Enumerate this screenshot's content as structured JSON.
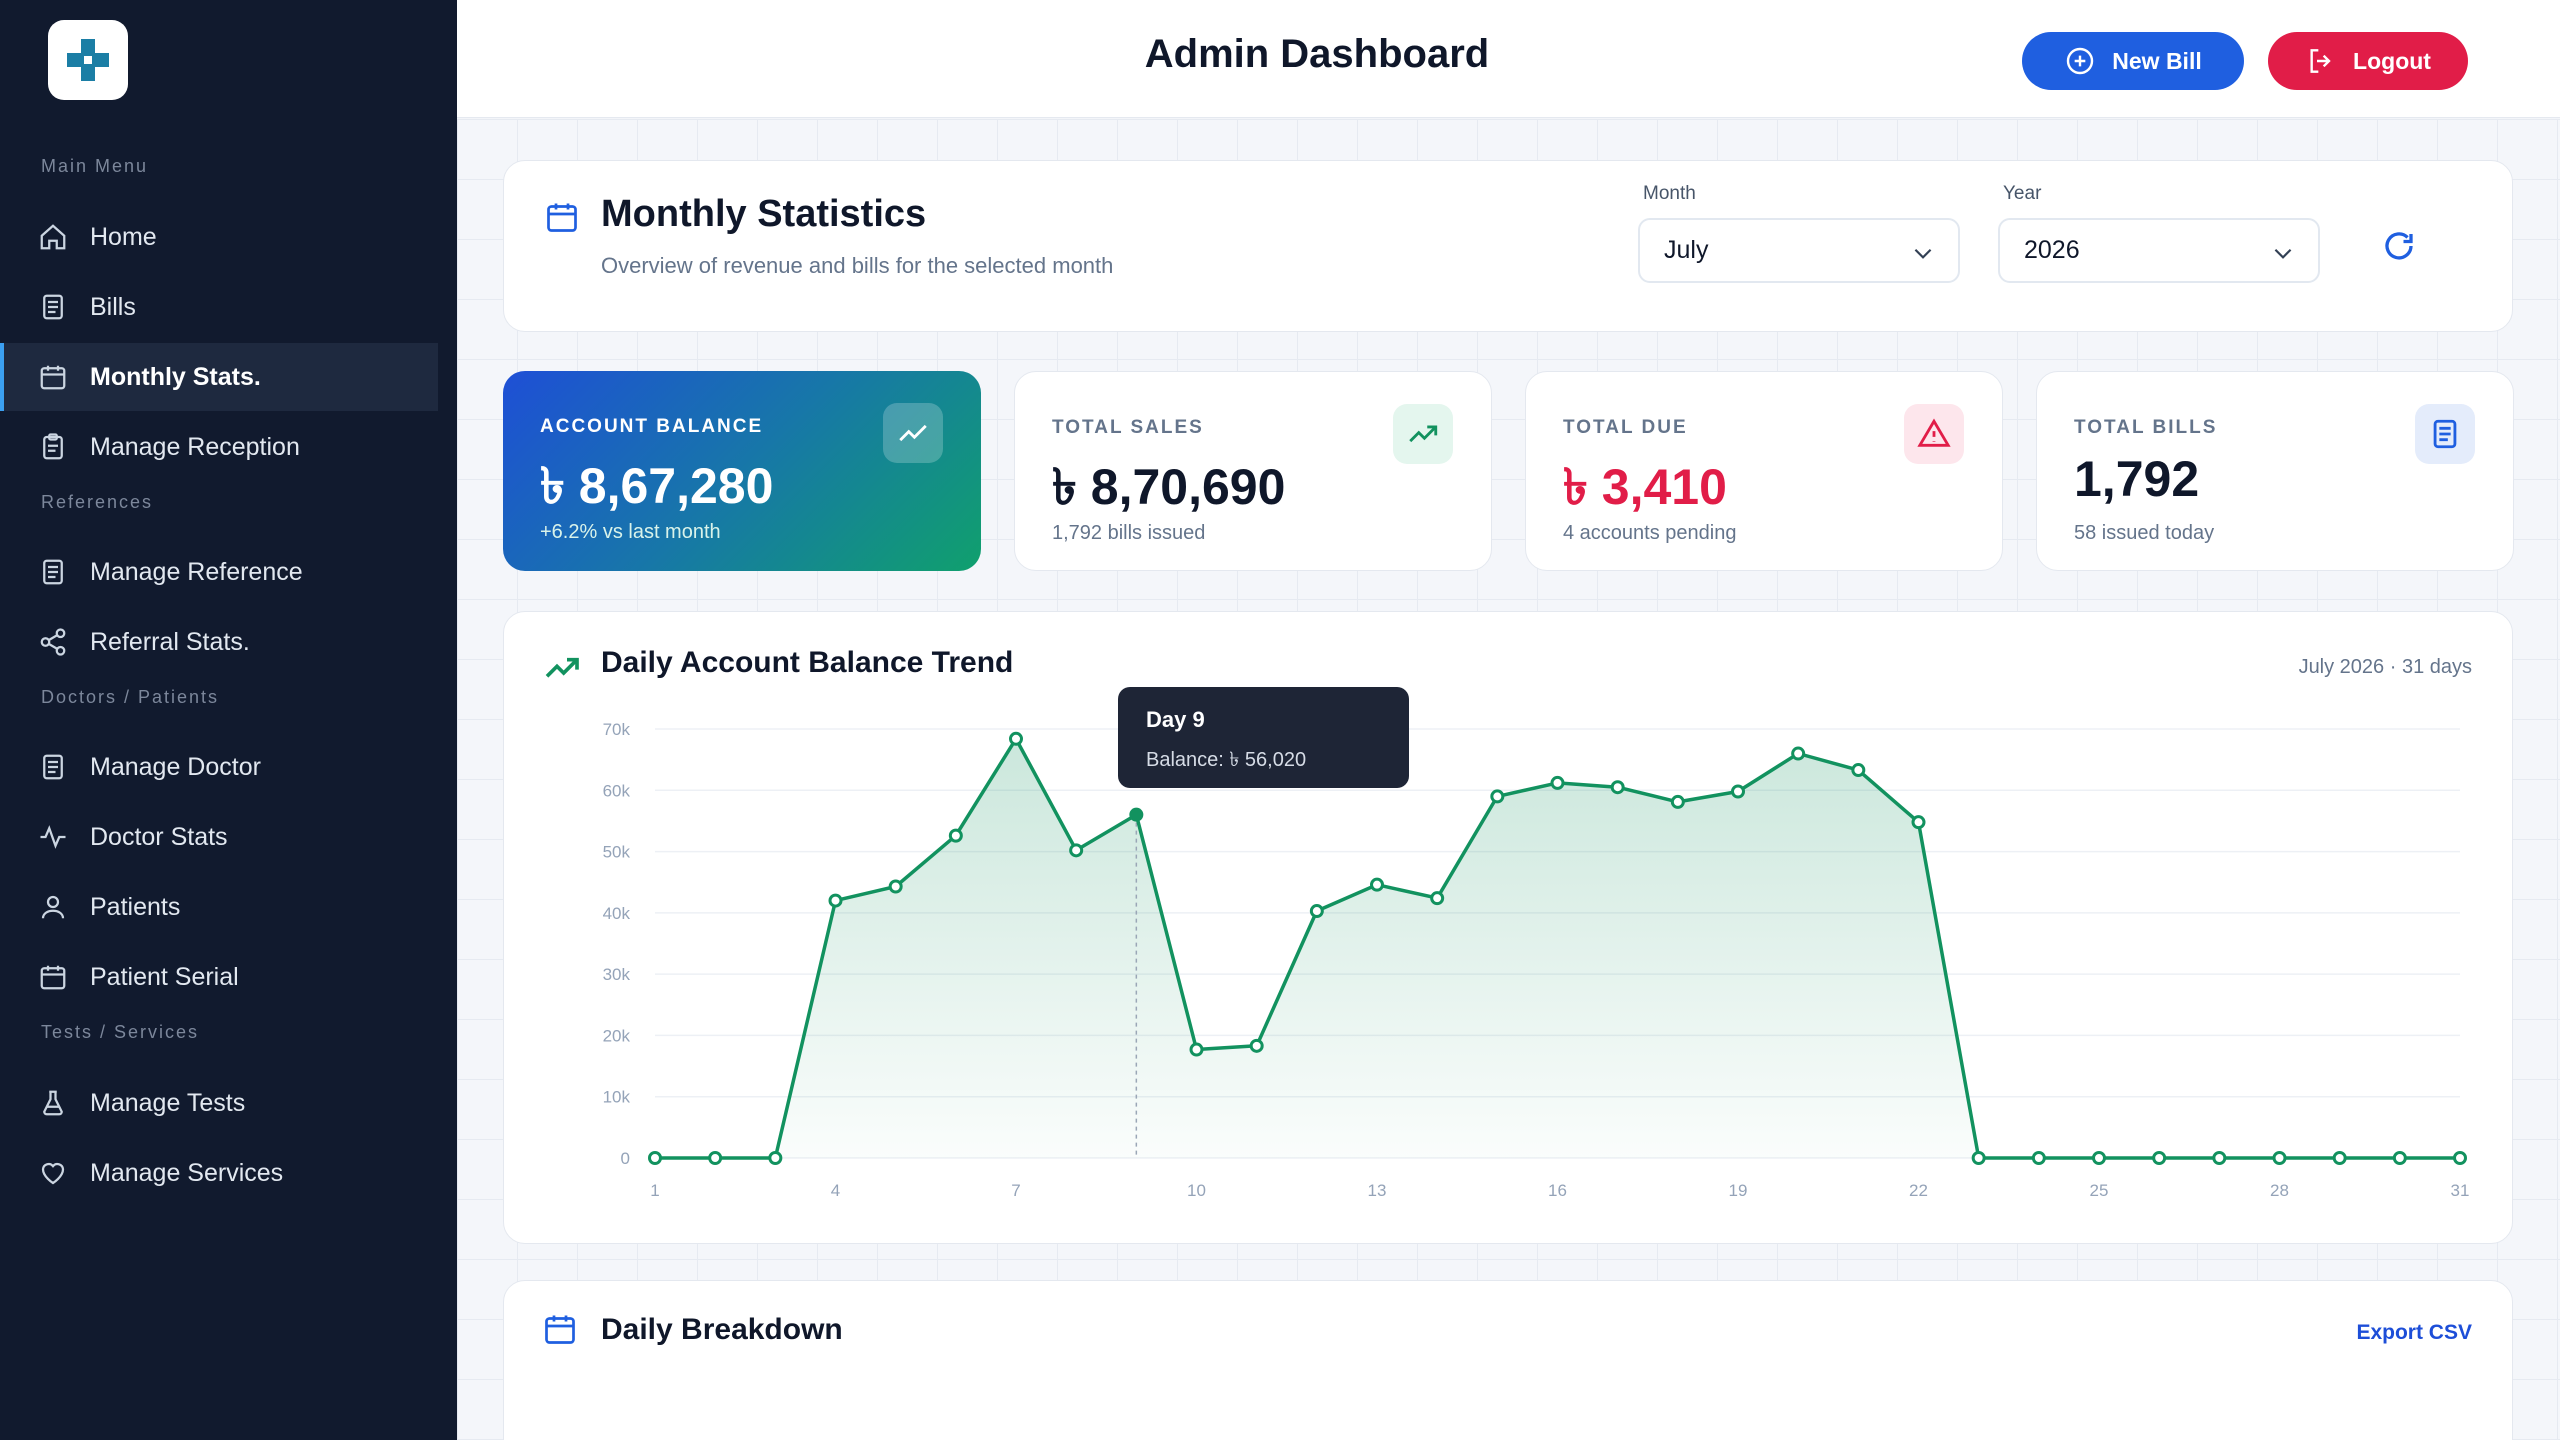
{
  "sidebar": {
    "sections": [
      {
        "label": "Main Menu"
      },
      {
        "label": "References"
      },
      {
        "label": "Doctors / Patients"
      },
      {
        "label": "Tests / Services"
      }
    ],
    "items": [
      {
        "label": "Home",
        "icon": "home-icon"
      },
      {
        "label": "Bills",
        "icon": "document-icon"
      },
      {
        "label": "Monthly Stats.",
        "icon": "calendar-icon",
        "active": true
      },
      {
        "label": "Manage Reception",
        "icon": "clipboard-icon"
      },
      {
        "label": "Manage Reference",
        "icon": "document-icon"
      },
      {
        "label": "Referral Stats.",
        "icon": "share-icon"
      },
      {
        "label": "Manage Doctor",
        "icon": "document-icon"
      },
      {
        "label": "Doctor Stats",
        "icon": "activity-icon"
      },
      {
        "label": "Patients",
        "icon": "user-icon"
      },
      {
        "label": "Patient Serial",
        "icon": "calendar-icon"
      },
      {
        "label": "Manage Tests",
        "icon": "flask-icon"
      },
      {
        "label": "Manage Services",
        "icon": "heart-icon"
      }
    ]
  },
  "header": {
    "title": "Admin Dashboard",
    "new_bill_label": "New Bill",
    "logout_label": "Logout"
  },
  "monthly": {
    "title": "Monthly Statistics",
    "subtitle": "Overview of revenue and bills for the selected month",
    "month_label": "Month",
    "month_value": "July",
    "year_label": "Year",
    "year_value": "2026"
  },
  "stats": {
    "balance": {
      "label": "ACCOUNT BALANCE",
      "value": "৳ 8,67,280",
      "sub": "+6.2% vs last month"
    },
    "sales": {
      "label": "TOTAL SALES",
      "value": "৳ 8,70,690",
      "sub": "1,792 bills issued"
    },
    "due": {
      "label": "TOTAL DUE",
      "value": "৳ 3,410",
      "sub": "4 accounts pending"
    },
    "bills": {
      "label": "TOTAL BILLS",
      "value": "1,792",
      "sub": "58 issued today"
    }
  },
  "colors": {
    "accent": "#1f5fe0",
    "danger": "#e11d48",
    "chart_line": "#12925f",
    "sidebar_bg": "#111a2e"
  },
  "chart_data": {
    "type": "area",
    "title": "Daily Account Balance Trend",
    "meta": "July 2026 · 31 days",
    "x": [
      1,
      2,
      3,
      4,
      5,
      6,
      7,
      8,
      9,
      10,
      11,
      12,
      13,
      14,
      15,
      16,
      17,
      18,
      19,
      20,
      21,
      22,
      23,
      24,
      25,
      26,
      27,
      28,
      29,
      30,
      31
    ],
    "x_ticks": [
      1,
      4,
      7,
      10,
      13,
      16,
      19,
      22,
      25,
      28,
      31
    ],
    "y_ticks": [
      {
        "value": 0,
        "label": "0"
      },
      {
        "value": 10000,
        "label": "10k"
      },
      {
        "value": 20000,
        "label": "20k"
      },
      {
        "value": 30000,
        "label": "30k"
      },
      {
        "value": 40000,
        "label": "40k"
      },
      {
        "value": 50000,
        "label": "50k"
      },
      {
        "value": 60000,
        "label": "60k"
      },
      {
        "value": 70000,
        "label": "70k"
      }
    ],
    "ylim": [
      0,
      70000
    ],
    "series": [
      {
        "values": [
          0,
          0,
          0,
          42000,
          44300,
          52600,
          68400,
          50200,
          56020,
          17700,
          18300,
          40300,
          44600,
          42400,
          59000,
          61200,
          60500,
          58100,
          59800,
          66000,
          63300,
          54800,
          0,
          0,
          0,
          0,
          0,
          0,
          0,
          0,
          0
        ]
      }
    ],
    "highlight_index": 8,
    "tooltip": {
      "title": "Day 9",
      "body": "Balance: ৳ 56,020"
    }
  },
  "breakdown": {
    "title": "Daily Breakdown",
    "export_label": "Export CSV"
  }
}
